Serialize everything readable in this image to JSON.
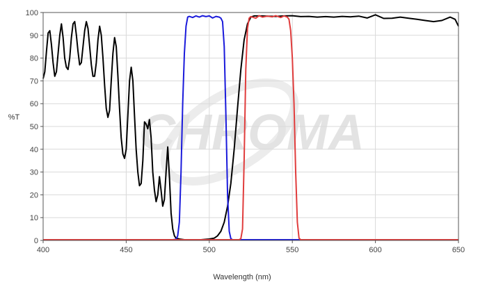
{
  "chart_data": {
    "type": "line",
    "xlabel": "Wavelength (nm)",
    "ylabel": "%T",
    "xlim": [
      400,
      650
    ],
    "ylim": [
      0,
      100
    ],
    "x_ticks": [
      400,
      450,
      500,
      550,
      600,
      650
    ],
    "y_ticks": [
      0,
      10,
      20,
      30,
      40,
      50,
      60,
      70,
      80,
      90,
      100
    ],
    "grid": true,
    "watermark": "CHROMA",
    "series": [
      {
        "color": "#000000",
        "points": [
          [
            400,
            71
          ],
          [
            401,
            74
          ],
          [
            402,
            83
          ],
          [
            403,
            91
          ],
          [
            404,
            92
          ],
          [
            405,
            86
          ],
          [
            406,
            78
          ],
          [
            407,
            72
          ],
          [
            408,
            74
          ],
          [
            409,
            82
          ],
          [
            410,
            90
          ],
          [
            411,
            95
          ],
          [
            412,
            89
          ],
          [
            413,
            80
          ],
          [
            414,
            76
          ],
          [
            415,
            75
          ],
          [
            416,
            80
          ],
          [
            417,
            89
          ],
          [
            418,
            95
          ],
          [
            419,
            96
          ],
          [
            420,
            90
          ],
          [
            421,
            83
          ],
          [
            422,
            77
          ],
          [
            423,
            78
          ],
          [
            424,
            85
          ],
          [
            425,
            92
          ],
          [
            426,
            96
          ],
          [
            427,
            93
          ],
          [
            428,
            85
          ],
          [
            429,
            77
          ],
          [
            430,
            72
          ],
          [
            431,
            72
          ],
          [
            432,
            78
          ],
          [
            433,
            88
          ],
          [
            434,
            94
          ],
          [
            435,
            90
          ],
          [
            436,
            80
          ],
          [
            437,
            68
          ],
          [
            438,
            58
          ],
          [
            439,
            54
          ],
          [
            440,
            57
          ],
          [
            441,
            70
          ],
          [
            442,
            82
          ],
          [
            443,
            89
          ],
          [
            444,
            85
          ],
          [
            445,
            72
          ],
          [
            446,
            58
          ],
          [
            447,
            45
          ],
          [
            448,
            38
          ],
          [
            449,
            36
          ],
          [
            450,
            40
          ],
          [
            451,
            55
          ],
          [
            452,
            70
          ],
          [
            453,
            76
          ],
          [
            454,
            70
          ],
          [
            455,
            55
          ],
          [
            456,
            40
          ],
          [
            457,
            30
          ],
          [
            458,
            24
          ],
          [
            459,
            25
          ],
          [
            460,
            35
          ],
          [
            461,
            52
          ],
          [
            462,
            51
          ],
          [
            463,
            49
          ],
          [
            464,
            53
          ],
          [
            465,
            45
          ],
          [
            466,
            30
          ],
          [
            467,
            22
          ],
          [
            468,
            17
          ],
          [
            469,
            20
          ],
          [
            470,
            28
          ],
          [
            471,
            22
          ],
          [
            472,
            15
          ],
          [
            473,
            18
          ],
          [
            474,
            30
          ],
          [
            475,
            41
          ],
          [
            476,
            28
          ],
          [
            477,
            12
          ],
          [
            478,
            5
          ],
          [
            479,
            2
          ],
          [
            480,
            1
          ],
          [
            482,
            0.6
          ],
          [
            485,
            0.3
          ],
          [
            490,
            0.2
          ],
          [
            495,
            0.3
          ],
          [
            500,
            0.6
          ],
          [
            503,
            1
          ],
          [
            505,
            2
          ],
          [
            507,
            4
          ],
          [
            509,
            8
          ],
          [
            511,
            15
          ],
          [
            513,
            25
          ],
          [
            515,
            40
          ],
          [
            517,
            58
          ],
          [
            519,
            75
          ],
          [
            521,
            88
          ],
          [
            523,
            95
          ],
          [
            525,
            98
          ],
          [
            527,
            98.5
          ],
          [
            530,
            98.5
          ],
          [
            535,
            98.4
          ],
          [
            540,
            98.3
          ],
          [
            545,
            98.5
          ],
          [
            550,
            98.6
          ],
          [
            555,
            98.2
          ],
          [
            560,
            98.3
          ],
          [
            565,
            98
          ],
          [
            570,
            98.2
          ],
          [
            575,
            98
          ],
          [
            580,
            98.3
          ],
          [
            585,
            98.1
          ],
          [
            590,
            98.4
          ],
          [
            595,
            97.6
          ],
          [
            600,
            99
          ],
          [
            605,
            97.4
          ],
          [
            610,
            97.5
          ],
          [
            615,
            98
          ],
          [
            620,
            97.5
          ],
          [
            625,
            97
          ],
          [
            630,
            96.5
          ],
          [
            635,
            96
          ],
          [
            640,
            96.5
          ],
          [
            645,
            98
          ],
          [
            648,
            97
          ],
          [
            650,
            94
          ]
        ]
      },
      {
        "color": "#1a1adb",
        "points": [
          [
            400,
            0.3
          ],
          [
            478,
            0.3
          ],
          [
            480,
            0.5
          ],
          [
            481,
            2
          ],
          [
            482,
            8
          ],
          [
            483,
            30
          ],
          [
            484,
            60
          ],
          [
            485,
            82
          ],
          [
            486,
            94
          ],
          [
            487,
            98
          ],
          [
            488,
            98.3
          ],
          [
            490,
            97.8
          ],
          [
            492,
            98.5
          ],
          [
            494,
            98
          ],
          [
            496,
            98.6
          ],
          [
            498,
            98.2
          ],
          [
            500,
            98.5
          ],
          [
            502,
            97.6
          ],
          [
            504,
            98.3
          ],
          [
            506,
            98
          ],
          [
            507,
            97.5
          ],
          [
            508,
            96
          ],
          [
            509,
            85
          ],
          [
            510,
            55
          ],
          [
            511,
            20
          ],
          [
            512,
            4
          ],
          [
            513,
            0.8
          ],
          [
            514,
            0.3
          ],
          [
            650,
            0.3
          ]
        ]
      },
      {
        "color": "#e03c3c",
        "points": [
          [
            400,
            0.3
          ],
          [
            518,
            0.3
          ],
          [
            519,
            0.8
          ],
          [
            520,
            5
          ],
          [
            521,
            35
          ],
          [
            522,
            75
          ],
          [
            523,
            93
          ],
          [
            524,
            97.5
          ],
          [
            525,
            98.2
          ],
          [
            528,
            97.5
          ],
          [
            530,
            98.6
          ],
          [
            532,
            98
          ],
          [
            535,
            98.4
          ],
          [
            538,
            98.1
          ],
          [
            540,
            98.6
          ],
          [
            543,
            97.8
          ],
          [
            545,
            98.5
          ],
          [
            547,
            98
          ],
          [
            548,
            97
          ],
          [
            549,
            92
          ],
          [
            550,
            80
          ],
          [
            551,
            60
          ],
          [
            552,
            30
          ],
          [
            553,
            8
          ],
          [
            554,
            1
          ],
          [
            555,
            0.3
          ],
          [
            650,
            0.3
          ]
        ]
      }
    ]
  }
}
